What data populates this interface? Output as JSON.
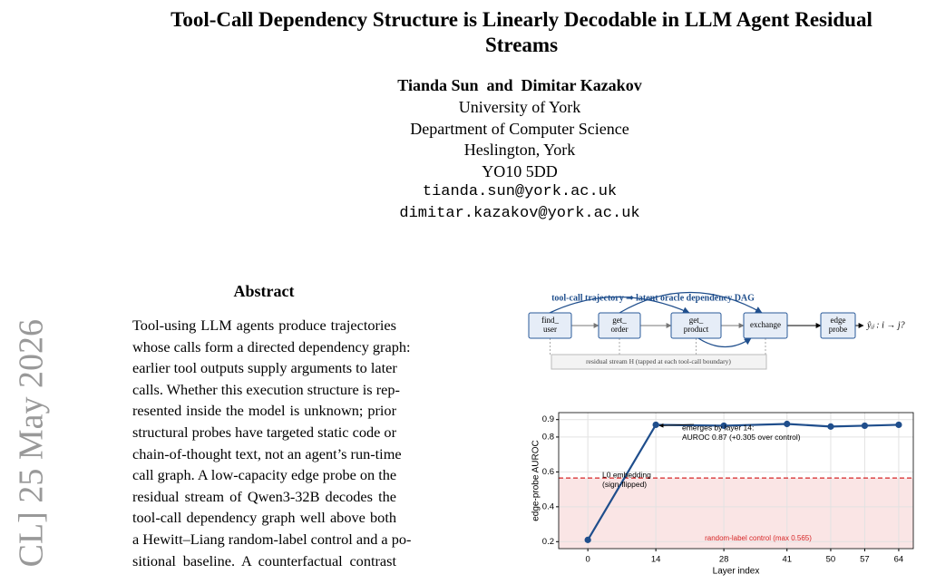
{
  "arxiv_stamp": "CL] 25 May 2026",
  "header": {
    "title": "Tool-Call Dependency Structure is Linearly Decodable in LLM Agent Residual Streams",
    "authors": "Tianda Sun  and  Dimitar Kazakov",
    "affiliation": [
      "University of York",
      "Department of Computer Science",
      "Heslington, York",
      "YO10 5DD"
    ],
    "emails": [
      "tianda.sun@york.ac.uk",
      "dimitar.kazakov@york.ac.uk"
    ]
  },
  "abstract": {
    "heading": "Abstract",
    "lines": [
      "Tool-using LLM agents produce trajectories",
      "whose calls form a directed dependency graph:",
      "earlier tool outputs supply arguments to later",
      "calls. Whether this execution structure is rep-",
      "resented inside the model is unknown; prior",
      "structural probes have targeted static code or",
      "chain-of-thought text, not an agent’s run-time",
      "call graph. A low-capacity edge probe on the",
      "residual stream of Qwen3-32B decodes the",
      "tool-call dependency graph well above both",
      "a Hewitt–Liang random-label control and a po-",
      "sitional baseline. A counterfactual contrast"
    ]
  },
  "diagram": {
    "title": "tool-call trajectory ⇒ latent oracle dependency DAG",
    "nodes": [
      [
        "find_",
        "user"
      ],
      [
        "get_",
        "order"
      ],
      [
        "get_",
        "product"
      ],
      [
        "exchange"
      ],
      [
        "edge",
        "probe"
      ]
    ],
    "output": "ŷᵢⱼ : i → j?",
    "residual": "residual stream H (tapped at each tool-call boundary)"
  },
  "chart_data": {
    "type": "line",
    "x": [
      0,
      14,
      28,
      41,
      50,
      57,
      64
    ],
    "values": [
      0.21,
      0.87,
      0.865,
      0.875,
      0.86,
      0.865,
      0.87
    ],
    "color": "#1f4e8c",
    "xlabel": "Layer index",
    "ylabel": "edge-probe AUROC",
    "xlim": [
      -6,
      67
    ],
    "ylim": [
      0.16,
      0.94
    ],
    "xticks": [
      0,
      14,
      28,
      41,
      50,
      57,
      64
    ],
    "yticks": [
      0.2,
      0.4,
      0.6,
      0.8,
      0.9
    ],
    "grid": true,
    "control": {
      "value": 0.565,
      "color": "#d62728",
      "label": "random-label control (max 0.565)"
    },
    "annotations": [
      {
        "lines": [
          "emerges by layer 14:",
          "AUROC 0.87 (+0.305 over control)"
        ]
      },
      {
        "lines": [
          "L0 embedding",
          "(sign-flipped)"
        ]
      }
    ]
  }
}
